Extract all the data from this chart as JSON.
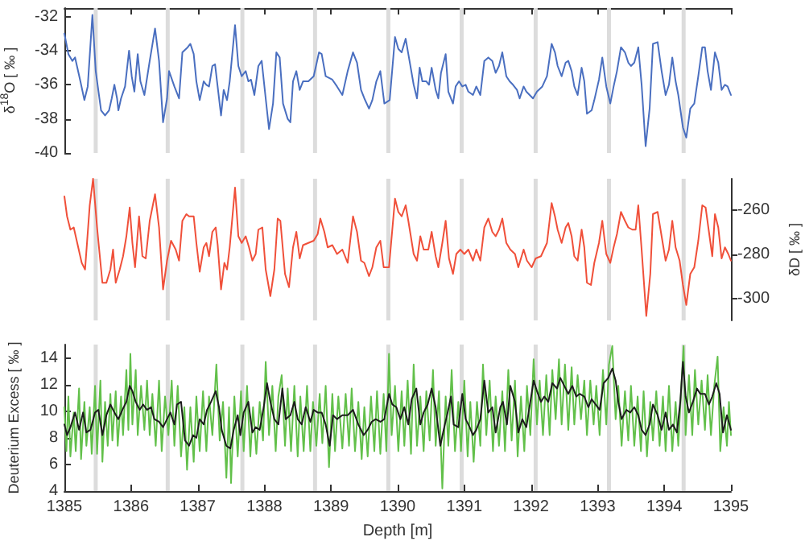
{
  "chart_data": [
    {
      "type": "line",
      "ylabel": "δ$^{18}$O [ ‰ ]",
      "xlim": [
        1385,
        1395
      ],
      "xticks": [
        {
          "value": 1385,
          "label": null
        },
        {
          "value": 1386,
          "label": null
        },
        {
          "value": 1387,
          "label": null
        },
        {
          "value": 1388,
          "label": null
        },
        {
          "value": 1389,
          "label": null
        },
        {
          "value": 1390,
          "label": null
        },
        {
          "value": 1391,
          "label": null
        },
        {
          "value": 1392,
          "label": null
        },
        {
          "value": 1393,
          "label": null
        },
        {
          "value": 1394,
          "label": null
        },
        {
          "value": 1395,
          "label": null
        }
      ],
      "ylim": [
        -40,
        -31.5
      ],
      "yticks": [
        -40,
        -38,
        -36,
        -34,
        -32
      ],
      "tick_labels": "y",
      "marker": "none",
      "line_style": "solid",
      "bands": [
        {
          "axis": "x",
          "from": 1385.44,
          "to": 1385.5,
          "color": "#dcdcdc"
        },
        {
          "axis": "x",
          "from": 1386.52,
          "to": 1386.58,
          "color": "#dcdcdc"
        },
        {
          "axis": "x",
          "from": 1387.64,
          "to": 1387.7,
          "color": "#dcdcdc"
        },
        {
          "axis": "x",
          "from": 1388.73,
          "to": 1388.79,
          "color": "#dcdcdc"
        },
        {
          "axis": "x",
          "from": 1389.83,
          "to": 1389.89,
          "color": "#dcdcdc"
        },
        {
          "axis": "x",
          "from": 1390.93,
          "to": 1390.99,
          "color": "#dcdcdc"
        },
        {
          "axis": "x",
          "from": 1392.04,
          "to": 1392.1,
          "color": "#dcdcdc"
        },
        {
          "axis": "x",
          "from": 1393.14,
          "to": 1393.2,
          "color": "#dcdcdc"
        },
        {
          "axis": "x",
          "from": 1394.26,
          "to": 1394.32,
          "color": "#dcdcdc"
        }
      ],
      "series": [
        {
          "color": "#4a6fc0",
          "x": [
            1385.0,
            1385.06,
            1385.12,
            1385.16,
            1385.24,
            1385.3,
            1385.35,
            1385.42,
            1385.47,
            1385.55,
            1385.61,
            1385.67,
            1385.71,
            1385.75,
            1385.79,
            1385.81,
            1385.85,
            1385.91,
            1385.97,
            1386.01,
            1386.05,
            1386.1,
            1386.14,
            1386.2,
            1386.28,
            1386.36,
            1386.42,
            1386.48,
            1386.54,
            1386.57,
            1386.65,
            1386.72,
            1386.77,
            1386.85,
            1386.89,
            1386.94,
            1386.98,
            1387.03,
            1387.09,
            1387.13,
            1387.17,
            1387.22,
            1387.26,
            1387.29,
            1387.35,
            1387.39,
            1387.44,
            1387.48,
            1387.56,
            1387.61,
            1387.66,
            1387.72,
            1387.76,
            1387.8,
            1387.85,
            1387.91,
            1387.96,
            1388.02,
            1388.07,
            1388.13,
            1388.18,
            1388.23,
            1388.28,
            1388.35,
            1388.39,
            1388.43,
            1388.48,
            1388.53,
            1388.58,
            1388.66,
            1388.74,
            1388.82,
            1388.86,
            1388.92,
            1389.02,
            1389.09,
            1389.17,
            1389.25,
            1389.33,
            1389.39,
            1389.45,
            1389.5,
            1389.57,
            1389.62,
            1389.68,
            1389.74,
            1389.8,
            1389.88,
            1389.96,
            1390.01,
            1390.06,
            1390.12,
            1390.16,
            1390.24,
            1390.29,
            1390.33,
            1390.37,
            1390.43,
            1390.47,
            1390.51,
            1390.57,
            1390.61,
            1390.65,
            1390.72,
            1390.76,
            1390.83,
            1390.87,
            1390.92,
            1390.97,
            1391.02,
            1391.06,
            1391.13,
            1391.18,
            1391.24,
            1391.3,
            1391.36,
            1391.42,
            1391.47,
            1391.52,
            1391.57,
            1391.63,
            1391.68,
            1391.73,
            1391.79,
            1391.83,
            1391.89,
            1391.93,
            1391.98,
            1392.03,
            1392.09,
            1392.17,
            1392.24,
            1392.31,
            1392.36,
            1392.4,
            1392.46,
            1392.52,
            1392.56,
            1392.61,
            1392.65,
            1392.7,
            1392.76,
            1392.8,
            1392.84,
            1392.91,
            1392.95,
            1393.02,
            1393.07,
            1393.13,
            1393.19,
            1393.24,
            1393.29,
            1393.35,
            1393.41,
            1393.46,
            1393.5,
            1393.55,
            1393.61,
            1393.66,
            1393.72,
            1393.78,
            1393.83,
            1393.9,
            1393.96,
            1394.02,
            1394.07,
            1394.12,
            1394.17,
            1394.21,
            1394.28,
            1394.33,
            1394.39,
            1394.45,
            1394.51,
            1394.57,
            1394.61,
            1394.65,
            1394.7,
            1394.76,
            1394.81,
            1394.86,
            1394.91,
            1394.95,
            1395.0
          ],
          "values": [
            -33.0,
            -34.2,
            -34.6,
            -34.4,
            -35.8,
            -36.9,
            -36.1,
            -31.9,
            -35.2,
            -37.5,
            -37.8,
            -37.5,
            -36.8,
            -36.0,
            -36.8,
            -37.5,
            -36.8,
            -36.1,
            -34.0,
            -35.5,
            -36.4,
            -34.2,
            -35.8,
            -36.6,
            -34.6,
            -32.7,
            -34.6,
            -38.2,
            -36.8,
            -35.2,
            -36.1,
            -36.8,
            -34.1,
            -33.8,
            -33.6,
            -34.2,
            -35.8,
            -36.9,
            -35.8,
            -36.0,
            -36.1,
            -34.9,
            -34.8,
            -35.8,
            -37.8,
            -36.3,
            -36.9,
            -35.8,
            -32.5,
            -34.9,
            -35.5,
            -35.2,
            -35.8,
            -35.7,
            -36.6,
            -34.9,
            -34.6,
            -36.8,
            -38.6,
            -37.1,
            -34.1,
            -34.4,
            -37.1,
            -38.0,
            -38.2,
            -35.8,
            -35.2,
            -36.3,
            -35.8,
            -35.8,
            -35.5,
            -34.1,
            -34.2,
            -35.5,
            -35.7,
            -36.1,
            -36.6,
            -35.2,
            -34.1,
            -34.7,
            -36.3,
            -36.8,
            -37.4,
            -36.9,
            -35.8,
            -35.2,
            -37.1,
            -36.9,
            -33.2,
            -33.9,
            -34.1,
            -33.3,
            -34.2,
            -36.0,
            -36.8,
            -35.0,
            -35.8,
            -35.8,
            -36.0,
            -35.0,
            -36.3,
            -36.8,
            -35.3,
            -34.2,
            -36.4,
            -37.1,
            -36.1,
            -35.8,
            -36.1,
            -36.0,
            -36.4,
            -36.6,
            -36.1,
            -36.6,
            -34.6,
            -34.4,
            -34.6,
            -35.3,
            -34.9,
            -34.1,
            -35.5,
            -35.8,
            -36.0,
            -36.3,
            -36.8,
            -36.1,
            -36.4,
            -36.6,
            -36.8,
            -36.4,
            -36.1,
            -35.5,
            -33.6,
            -34.1,
            -34.9,
            -35.5,
            -34.7,
            -34.6,
            -35.2,
            -36.1,
            -36.6,
            -35.0,
            -35.8,
            -37.7,
            -37.5,
            -36.9,
            -35.7,
            -34.4,
            -36.1,
            -37.1,
            -36.1,
            -35.2,
            -33.8,
            -34.1,
            -34.7,
            -34.9,
            -34.7,
            -33.8,
            -36.0,
            -39.6,
            -37.4,
            -33.6,
            -33.5,
            -35.2,
            -36.6,
            -36.0,
            -34.4,
            -35.8,
            -36.6,
            -38.5,
            -39.1,
            -37.4,
            -37.1,
            -35.5,
            -33.8,
            -33.8,
            -35.2,
            -36.3,
            -34.1,
            -34.7,
            -36.3,
            -36.0,
            -36.1,
            -36.6
          ]
        }
      ]
    },
    {
      "type": "line",
      "y2label": "δD [ ‰ ]",
      "xlim": [
        1385,
        1395
      ],
      "y2lim": [
        -310,
        -246
      ],
      "y2ticks": [
        -300,
        -280,
        -260
      ],
      "tick_labels": "y",
      "marker": "none",
      "line_style": "solid",
      "bands": [
        {
          "axis": "x",
          "from": 1385.44,
          "to": 1385.5,
          "color": "#dcdcdc"
        },
        {
          "axis": "x",
          "from": 1386.52,
          "to": 1386.58,
          "color": "#dcdcdc"
        },
        {
          "axis": "x",
          "from": 1387.64,
          "to": 1387.7,
          "color": "#dcdcdc"
        },
        {
          "axis": "x",
          "from": 1388.73,
          "to": 1388.79,
          "color": "#dcdcdc"
        },
        {
          "axis": "x",
          "from": 1389.83,
          "to": 1389.89,
          "color": "#dcdcdc"
        },
        {
          "axis": "x",
          "from": 1390.93,
          "to": 1390.99,
          "color": "#dcdcdc"
        },
        {
          "axis": "x",
          "from": 1392.04,
          "to": 1392.1,
          "color": "#dcdcdc"
        },
        {
          "axis": "x",
          "from": 1393.14,
          "to": 1393.2,
          "color": "#dcdcdc"
        },
        {
          "axis": "x",
          "from": 1394.26,
          "to": 1394.32,
          "color": "#dcdcdc"
        }
      ],
      "series": [
        {
          "color": "#f0503a",
          "axis": "y2",
          "x": [
            1385.0,
            1385.04,
            1385.09,
            1385.14,
            1385.2,
            1385.26,
            1385.31,
            1385.38,
            1385.43,
            1385.49,
            1385.57,
            1385.63,
            1385.69,
            1385.73,
            1385.77,
            1385.83,
            1385.88,
            1385.93,
            1385.98,
            1386.02,
            1386.06,
            1386.12,
            1386.17,
            1386.22,
            1386.28,
            1386.36,
            1386.42,
            1386.48,
            1386.54,
            1386.6,
            1386.67,
            1386.72,
            1386.77,
            1386.83,
            1386.87,
            1386.94,
            1386.98,
            1387.03,
            1387.09,
            1387.13,
            1387.17,
            1387.22,
            1387.27,
            1387.3,
            1387.35,
            1387.4,
            1387.44,
            1387.48,
            1387.56,
            1387.61,
            1387.66,
            1387.72,
            1387.77,
            1387.82,
            1387.87,
            1387.91,
            1387.97,
            1388.02,
            1388.09,
            1388.15,
            1388.2,
            1388.24,
            1388.31,
            1388.37,
            1388.43,
            1388.48,
            1388.53,
            1388.58,
            1388.66,
            1388.74,
            1388.8,
            1388.84,
            1388.9,
            1388.95,
            1389.02,
            1389.09,
            1389.17,
            1389.25,
            1389.33,
            1389.39,
            1389.45,
            1389.5,
            1389.57,
            1389.62,
            1389.68,
            1389.74,
            1389.79,
            1389.87,
            1389.96,
            1390.01,
            1390.06,
            1390.12,
            1390.16,
            1390.24,
            1390.29,
            1390.34,
            1390.39,
            1390.46,
            1390.51,
            1390.57,
            1390.61,
            1390.67,
            1390.72,
            1390.77,
            1390.83,
            1390.88,
            1390.94,
            1391.0,
            1391.06,
            1391.13,
            1391.18,
            1391.24,
            1391.3,
            1391.36,
            1391.42,
            1391.47,
            1391.52,
            1391.57,
            1391.63,
            1391.69,
            1391.76,
            1391.81,
            1391.89,
            1391.94,
            1392.01,
            1392.07,
            1392.15,
            1392.24,
            1392.31,
            1392.36,
            1392.4,
            1392.46,
            1392.52,
            1392.56,
            1392.61,
            1392.65,
            1392.7,
            1392.76,
            1392.8,
            1392.84,
            1392.9,
            1392.95,
            1393.02,
            1393.07,
            1393.13,
            1393.19,
            1393.24,
            1393.29,
            1393.35,
            1393.41,
            1393.46,
            1393.52,
            1393.57,
            1393.61,
            1393.66,
            1393.73,
            1393.79,
            1393.83,
            1393.9,
            1393.96,
            1394.02,
            1394.07,
            1394.12,
            1394.17,
            1394.23,
            1394.28,
            1394.33,
            1394.39,
            1394.45,
            1394.51,
            1394.57,
            1394.62,
            1394.67,
            1394.72,
            1394.76,
            1394.81,
            1394.86,
            1394.91,
            1394.96,
            1395.0
          ],
          "values": [
            -254,
            -263,
            -269,
            -268,
            -276,
            -284,
            -287,
            -258,
            -246,
            -268,
            -293,
            -293,
            -287,
            -278,
            -293,
            -287,
            -281,
            -272,
            -259,
            -275,
            -286,
            -263,
            -281,
            -282,
            -265,
            -253,
            -268,
            -296,
            -283,
            -274,
            -278,
            -283,
            -265,
            -262,
            -263,
            -263,
            -275,
            -288,
            -277,
            -275,
            -281,
            -270,
            -268,
            -276,
            -296,
            -284,
            -287,
            -277,
            -250,
            -272,
            -275,
            -272,
            -277,
            -283,
            -280,
            -269,
            -268,
            -287,
            -299,
            -287,
            -264,
            -265,
            -289,
            -295,
            -277,
            -270,
            -282,
            -276,
            -275,
            -274,
            -271,
            -264,
            -270,
            -277,
            -276,
            -280,
            -278,
            -284,
            -263,
            -270,
            -283,
            -284,
            -290,
            -286,
            -277,
            -274,
            -286,
            -286,
            -255,
            -261,
            -263,
            -258,
            -265,
            -280,
            -283,
            -272,
            -278,
            -278,
            -270,
            -281,
            -286,
            -275,
            -265,
            -282,
            -289,
            -280,
            -278,
            -280,
            -278,
            -283,
            -278,
            -283,
            -268,
            -264,
            -270,
            -272,
            -269,
            -264,
            -275,
            -278,
            -280,
            -286,
            -278,
            -283,
            -286,
            -282,
            -281,
            -275,
            -257,
            -263,
            -269,
            -275,
            -268,
            -266,
            -272,
            -281,
            -283,
            -269,
            -277,
            -293,
            -294,
            -284,
            -275,
            -265,
            -280,
            -284,
            -277,
            -271,
            -261,
            -265,
            -268,
            -269,
            -269,
            -258,
            -278,
            -308,
            -289,
            -262,
            -261,
            -272,
            -283,
            -278,
            -265,
            -277,
            -283,
            -294,
            -303,
            -289,
            -286,
            -274,
            -258,
            -259,
            -270,
            -281,
            -262,
            -268,
            -282,
            -277,
            -280,
            -283
          ]
        }
      ]
    },
    {
      "type": "line",
      "xlabel": "Depth [m]",
      "ylabel": "Deuterium Excess [ ‰ ]",
      "xlim": [
        1385,
        1395
      ],
      "xticks": [
        1385,
        1386,
        1387,
        1388,
        1389,
        1390,
        1391,
        1392,
        1393,
        1394,
        1395
      ],
      "ylim": [
        4,
        15
      ],
      "yticks": [
        4,
        6,
        8,
        10,
        12,
        14
      ],
      "marker": "none",
      "line_style": "solid",
      "bands": [
        {
          "axis": "x",
          "from": 1385.44,
          "to": 1385.5,
          "color": "#dcdcdc"
        },
        {
          "axis": "x",
          "from": 1386.52,
          "to": 1386.58,
          "color": "#dcdcdc"
        },
        {
          "axis": "x",
          "from": 1387.64,
          "to": 1387.7,
          "color": "#dcdcdc"
        },
        {
          "axis": "x",
          "from": 1388.73,
          "to": 1388.79,
          "color": "#dcdcdc"
        },
        {
          "axis": "x",
          "from": 1389.83,
          "to": 1389.89,
          "color": "#dcdcdc"
        },
        {
          "axis": "x",
          "from": 1390.93,
          "to": 1390.99,
          "color": "#dcdcdc"
        },
        {
          "axis": "x",
          "from": 1392.04,
          "to": 1392.1,
          "color": "#dcdcdc"
        },
        {
          "axis": "x",
          "from": 1393.14,
          "to": 1393.2,
          "color": "#dcdcdc"
        },
        {
          "axis": "x",
          "from": 1394.26,
          "to": 1394.32,
          "color": "#dcdcdc"
        }
      ],
      "series": [
        {
          "color": "#62c04a",
          "x": [
            1385.0,
            1385.03,
            1385.06,
            1385.09,
            1385.14,
            1385.17,
            1385.22,
            1385.25,
            1385.3,
            1385.33,
            1385.38,
            1385.41,
            1385.46,
            1385.49,
            1385.54,
            1385.57,
            1385.61,
            1385.65,
            1385.69,
            1385.72,
            1385.77,
            1385.8,
            1385.85,
            1385.88,
            1385.93,
            1385.96,
            1385.99,
            1386.02,
            1386.07,
            1386.1,
            1386.15,
            1386.2,
            1386.24,
            1386.28,
            1386.32,
            1386.37,
            1386.42,
            1386.46,
            1386.51,
            1386.56,
            1386.61,
            1386.65,
            1386.7,
            1386.75,
            1386.8,
            1386.84,
            1386.89,
            1386.94,
            1386.98,
            1387.03,
            1387.08,
            1387.13,
            1387.17,
            1387.22,
            1387.28,
            1387.33,
            1387.38,
            1387.43,
            1387.47,
            1387.5,
            1387.55,
            1387.6,
            1387.65,
            1387.69,
            1387.74,
            1387.79,
            1387.83,
            1387.88,
            1387.93,
            1387.98,
            1388.02,
            1388.07,
            1388.12,
            1388.17,
            1388.21,
            1388.26,
            1388.31,
            1388.35,
            1388.4,
            1388.45,
            1388.5,
            1388.54,
            1388.59,
            1388.64,
            1388.69,
            1388.73,
            1388.78,
            1388.83,
            1388.87,
            1388.92,
            1388.97,
            1389.02,
            1389.06,
            1389.11,
            1389.17,
            1389.22,
            1389.27,
            1389.31,
            1389.36,
            1389.41,
            1389.46,
            1389.5,
            1389.55,
            1389.6,
            1389.65,
            1389.69,
            1389.74,
            1389.79,
            1389.83,
            1389.87,
            1389.91,
            1389.96,
            1390.01,
            1390.06,
            1390.1,
            1390.15,
            1390.2,
            1390.24,
            1390.29,
            1390.34,
            1390.39,
            1390.43,
            1390.48,
            1390.53,
            1390.57,
            1390.62,
            1390.67,
            1390.72,
            1390.76,
            1390.81,
            1390.86,
            1390.91,
            1390.95,
            1391.0,
            1391.05,
            1391.09,
            1391.14,
            1391.19,
            1391.24,
            1391.28,
            1391.33,
            1391.38,
            1391.43,
            1391.47,
            1391.52,
            1391.57,
            1391.61,
            1391.66,
            1391.71,
            1391.76,
            1391.8,
            1391.85,
            1391.9,
            1391.94,
            1391.99,
            1392.04,
            1392.09,
            1392.13,
            1392.18,
            1392.23,
            1392.28,
            1392.32,
            1392.37,
            1392.42,
            1392.46,
            1392.51,
            1392.56,
            1392.61,
            1392.65,
            1392.7,
            1392.75,
            1392.8,
            1392.84,
            1392.89,
            1392.94,
            1392.98,
            1393.03,
            1393.08,
            1393.13,
            1393.17,
            1393.22,
            1393.27,
            1393.31,
            1393.36,
            1393.41,
            1393.46,
            1393.5,
            1393.55,
            1393.6,
            1393.65,
            1393.69,
            1393.74,
            1393.79,
            1393.83,
            1393.88,
            1393.93,
            1393.98,
            1394.02,
            1394.07,
            1394.12,
            1394.17,
            1394.21,
            1394.26,
            1394.29,
            1394.32,
            1394.37,
            1394.42,
            1394.46,
            1394.51,
            1394.56,
            1394.61,
            1394.65,
            1394.7,
            1394.75,
            1394.8,
            1394.84,
            1394.89,
            1394.94,
            1394.97,
            1395.0
          ],
          "values": [
            10.3,
            7.0,
            11.1,
            6.6,
            9.9,
            7.0,
            11.7,
            6.4,
            10.7,
            7.4,
            10.3,
            6.8,
            11.9,
            6.8,
            12.3,
            6.2,
            10.7,
            7.4,
            11.3,
            7.8,
            11.5,
            7.4,
            11.1,
            8.2,
            13.1,
            8.6,
            14.3,
            9.0,
            13.1,
            8.2,
            11.9,
            8.6,
            12.3,
            8.2,
            11.3,
            7.4,
            12.3,
            7.0,
            11.1,
            8.2,
            12.3,
            7.4,
            11.9,
            6.6,
            10.3,
            5.6,
            10.3,
            6.2,
            11.1,
            7.0,
            11.5,
            7.0,
            11.1,
            8.2,
            13.5,
            7.8,
            10.7,
            5.0,
            10.3,
            4.6,
            11.1,
            6.6,
            11.5,
            7.0,
            11.9,
            6.6,
            10.3,
            6.8,
            10.7,
            7.8,
            13.7,
            8.2,
            11.9,
            7.0,
            11.1,
            12.7,
            7.4,
            11.7,
            7.0,
            11.9,
            6.6,
            11.1,
            7.0,
            11.9,
            7.0,
            10.7,
            7.4,
            11.3,
            7.6,
            11.9,
            5.8,
            11.3,
            7.0,
            11.1,
            7.2,
            11.3,
            7.4,
            11.7,
            7.0,
            10.7,
            6.4,
            10.3,
            6.6,
            11.1,
            7.0,
            11.5,
            6.8,
            11.3,
            7.0,
            14.3,
            8.2,
            11.9,
            7.0,
            11.5,
            7.4,
            12.3,
            6.8,
            13.5,
            7.4,
            11.1,
            7.0,
            11.5,
            7.8,
            13.1,
            7.4,
            11.5,
            4.2,
            11.1,
            7.4,
            13.1,
            7.0,
            10.7,
            7.0,
            12.3,
            6.6,
            10.7,
            6.2,
            10.7,
            7.4,
            13.5,
            8.2,
            12.3,
            7.0,
            11.1,
            7.4,
            11.5,
            7.0,
            13.1,
            7.8,
            12.3,
            6.6,
            11.1,
            7.0,
            11.9,
            8.2,
            13.9,
            9.0,
            12.3,
            8.2,
            12.7,
            8.2,
            13.1,
            9.4,
            13.9,
            9.0,
            13.5,
            8.6,
            13.3,
            9.0,
            12.7,
            9.4,
            12.3,
            8.2,
            12.3,
            9.0,
            11.9,
            8.2,
            13.1,
            9.0,
            13.5,
            14.9,
            9.4,
            11.9,
            7.4,
            11.5,
            7.8,
            11.9,
            7.4,
            11.1,
            7.0,
            11.5,
            6.6,
            10.7,
            7.8,
            11.5,
            7.4,
            11.1,
            7.0,
            11.9,
            7.0,
            10.7,
            7.4,
            12.3,
            14.9,
            8.2,
            12.7,
            8.2,
            13.1,
            9.0,
            12.3,
            8.6,
            12.7,
            8.2,
            11.9,
            14.1,
            7.0,
            10.3,
            7.4,
            10.7,
            8.2
          ]
        },
        {
          "color": "#1c1c1c",
          "x": [
            1385.0,
            1385.04,
            1385.09,
            1385.16,
            1385.22,
            1385.28,
            1385.33,
            1385.39,
            1385.46,
            1385.51,
            1385.57,
            1385.63,
            1385.69,
            1385.75,
            1385.81,
            1385.87,
            1385.93,
            1385.98,
            1386.02,
            1386.07,
            1386.13,
            1386.18,
            1386.24,
            1386.3,
            1386.35,
            1386.42,
            1386.48,
            1386.54,
            1386.59,
            1386.65,
            1386.69,
            1386.75,
            1386.81,
            1386.87,
            1386.93,
            1386.98,
            1387.03,
            1387.09,
            1387.14,
            1387.2,
            1387.27,
            1387.32,
            1387.36,
            1387.43,
            1387.49,
            1387.54,
            1387.6,
            1387.64,
            1387.69,
            1387.76,
            1387.82,
            1387.87,
            1387.93,
            1387.99,
            1388.04,
            1388.09,
            1388.15,
            1388.21,
            1388.27,
            1388.32,
            1388.39,
            1388.45,
            1388.5,
            1388.56,
            1388.62,
            1388.69,
            1388.74,
            1388.8,
            1388.86,
            1388.92,
            1388.98,
            1389.03,
            1389.09,
            1389.17,
            1389.25,
            1389.33,
            1389.41,
            1389.49,
            1389.55,
            1389.61,
            1389.67,
            1389.74,
            1389.8,
            1389.87,
            1389.92,
            1389.98,
            1390.04,
            1390.1,
            1390.16,
            1390.21,
            1390.28,
            1390.34,
            1390.39,
            1390.45,
            1390.51,
            1390.57,
            1390.64,
            1390.69,
            1390.75,
            1390.8,
            1390.84,
            1390.91,
            1390.97,
            1391.02,
            1391.08,
            1391.13,
            1391.18,
            1391.24,
            1391.3,
            1391.36,
            1391.42,
            1391.47,
            1391.54,
            1391.58,
            1391.64,
            1391.69,
            1391.76,
            1391.81,
            1391.87,
            1391.93,
            1391.99,
            1392.04,
            1392.09,
            1392.15,
            1392.2,
            1392.26,
            1392.32,
            1392.39,
            1392.44,
            1392.5,
            1392.56,
            1392.62,
            1392.68,
            1392.73,
            1392.8,
            1392.86,
            1392.91,
            1392.97,
            1393.03,
            1393.09,
            1393.16,
            1393.22,
            1393.27,
            1393.31,
            1393.36,
            1393.43,
            1393.49,
            1393.55,
            1393.61,
            1393.66,
            1393.72,
            1393.78,
            1393.83,
            1393.9,
            1393.96,
            1394.02,
            1394.07,
            1394.13,
            1394.19,
            1394.24,
            1394.28,
            1394.32,
            1394.37,
            1394.43,
            1394.49,
            1394.54,
            1394.61,
            1394.67,
            1394.72,
            1394.78,
            1394.83,
            1394.88,
            1394.94,
            1395.0
          ],
          "values": [
            9.0,
            8.2,
            8.8,
            9.9,
            8.6,
            9.9,
            8.4,
            8.6,
            9.9,
            10.1,
            8.2,
            9.7,
            10.5,
            9.9,
            9.4,
            10.1,
            10.7,
            11.9,
            11.5,
            10.7,
            10.1,
            10.5,
            10.1,
            10.3,
            9.4,
            9.2,
            8.8,
            9.4,
            9.9,
            9.0,
            10.5,
            10.7,
            7.8,
            7.4,
            8.2,
            8.0,
            9.4,
            9.0,
            10.1,
            10.7,
            11.5,
            10.3,
            8.6,
            7.4,
            7.2,
            8.6,
            9.7,
            8.2,
            9.9,
            10.7,
            8.4,
            8.8,
            8.6,
            10.3,
            12.1,
            10.7,
            9.4,
            9.0,
            11.7,
            9.4,
            9.7,
            10.7,
            9.4,
            9.0,
            10.3,
            9.2,
            10.1,
            9.9,
            9.9,
            9.0,
            7.4,
            9.7,
            9.4,
            9.7,
            9.7,
            10.1,
            9.0,
            8.2,
            8.6,
            9.2,
            9.4,
            9.2,
            9.4,
            11.3,
            10.5,
            10.3,
            9.4,
            10.3,
            9.0,
            10.9,
            11.7,
            9.0,
            9.9,
            10.5,
            11.7,
            10.3,
            7.4,
            8.6,
            9.9,
            11.1,
            9.0,
            8.8,
            11.3,
            9.4,
            8.8,
            8.2,
            8.6,
            9.4,
            12.3,
            9.9,
            10.3,
            8.4,
            10.3,
            10.7,
            9.0,
            11.9,
            10.7,
            8.4,
            9.4,
            8.8,
            10.7,
            12.3,
            11.5,
            10.7,
            11.1,
            10.7,
            12.1,
            11.7,
            12.5,
            11.9,
            11.3,
            11.9,
            11.1,
            11.3,
            11.1,
            10.3,
            10.9,
            10.5,
            10.1,
            12.1,
            12.5,
            13.2,
            12.3,
            10.7,
            9.4,
            10.1,
            9.9,
            10.3,
            9.7,
            8.6,
            8.2,
            9.0,
            10.5,
            9.7,
            8.6,
            9.9,
            8.6,
            9.0,
            8.4,
            10.7,
            13.7,
            11.1,
            9.9,
            10.7,
            11.7,
            11.3,
            11.3,
            10.5,
            11.1,
            12.1,
            11.3,
            8.4,
            9.7,
            8.6
          ]
        }
      ]
    }
  ]
}
